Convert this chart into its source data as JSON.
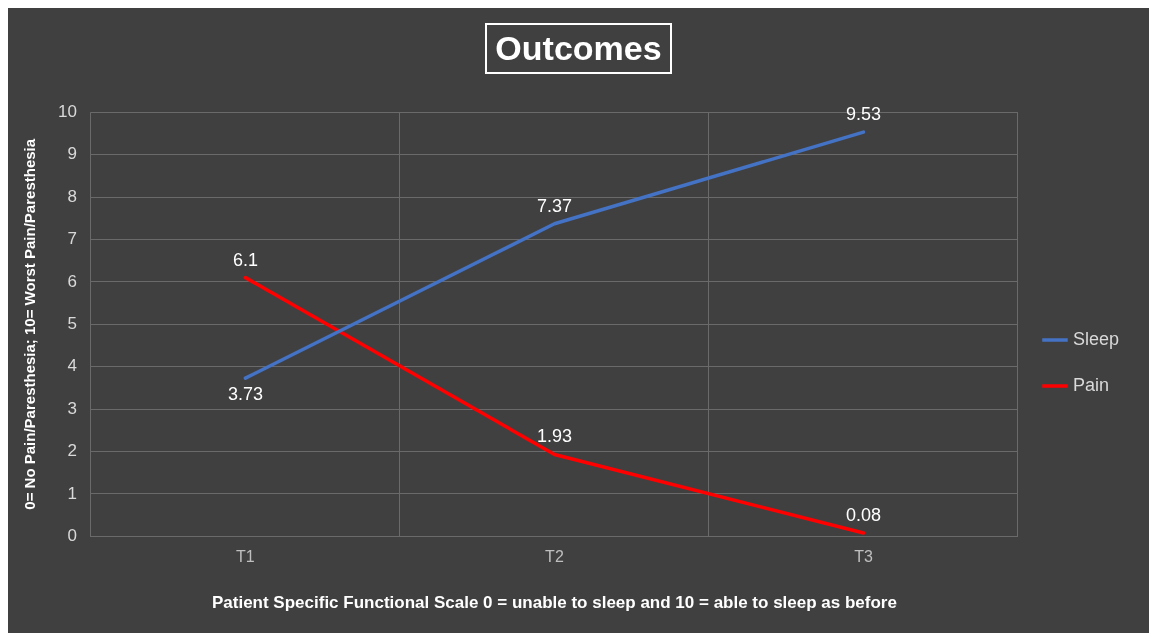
{
  "chart_data": {
    "type": "line",
    "title": "Outcomes",
    "xlabel": "Patient Specific Functional Scale 0 = unable to sleep and 10 = able to sleep as before",
    "ylabel": "0= No Pain/Paresthesia; 10= Worst Pain/Paresthesia",
    "categories": [
      "T1",
      "T2",
      "T3"
    ],
    "series": [
      {
        "name": "Sleep",
        "color": "#4472c4",
        "values": [
          3.73,
          7.37,
          9.53
        ]
      },
      {
        "name": "Pain",
        "color": "#ff0000",
        "values": [
          6.1,
          1.93,
          0.08
        ]
      }
    ],
    "ylim": [
      0,
      10
    ],
    "yticks": [
      0,
      1,
      2,
      3,
      4,
      5,
      6,
      7,
      8,
      9,
      10
    ],
    "grid": true,
    "legend": "right",
    "marker": "none",
    "line_style": "solid",
    "data_labels": true
  }
}
